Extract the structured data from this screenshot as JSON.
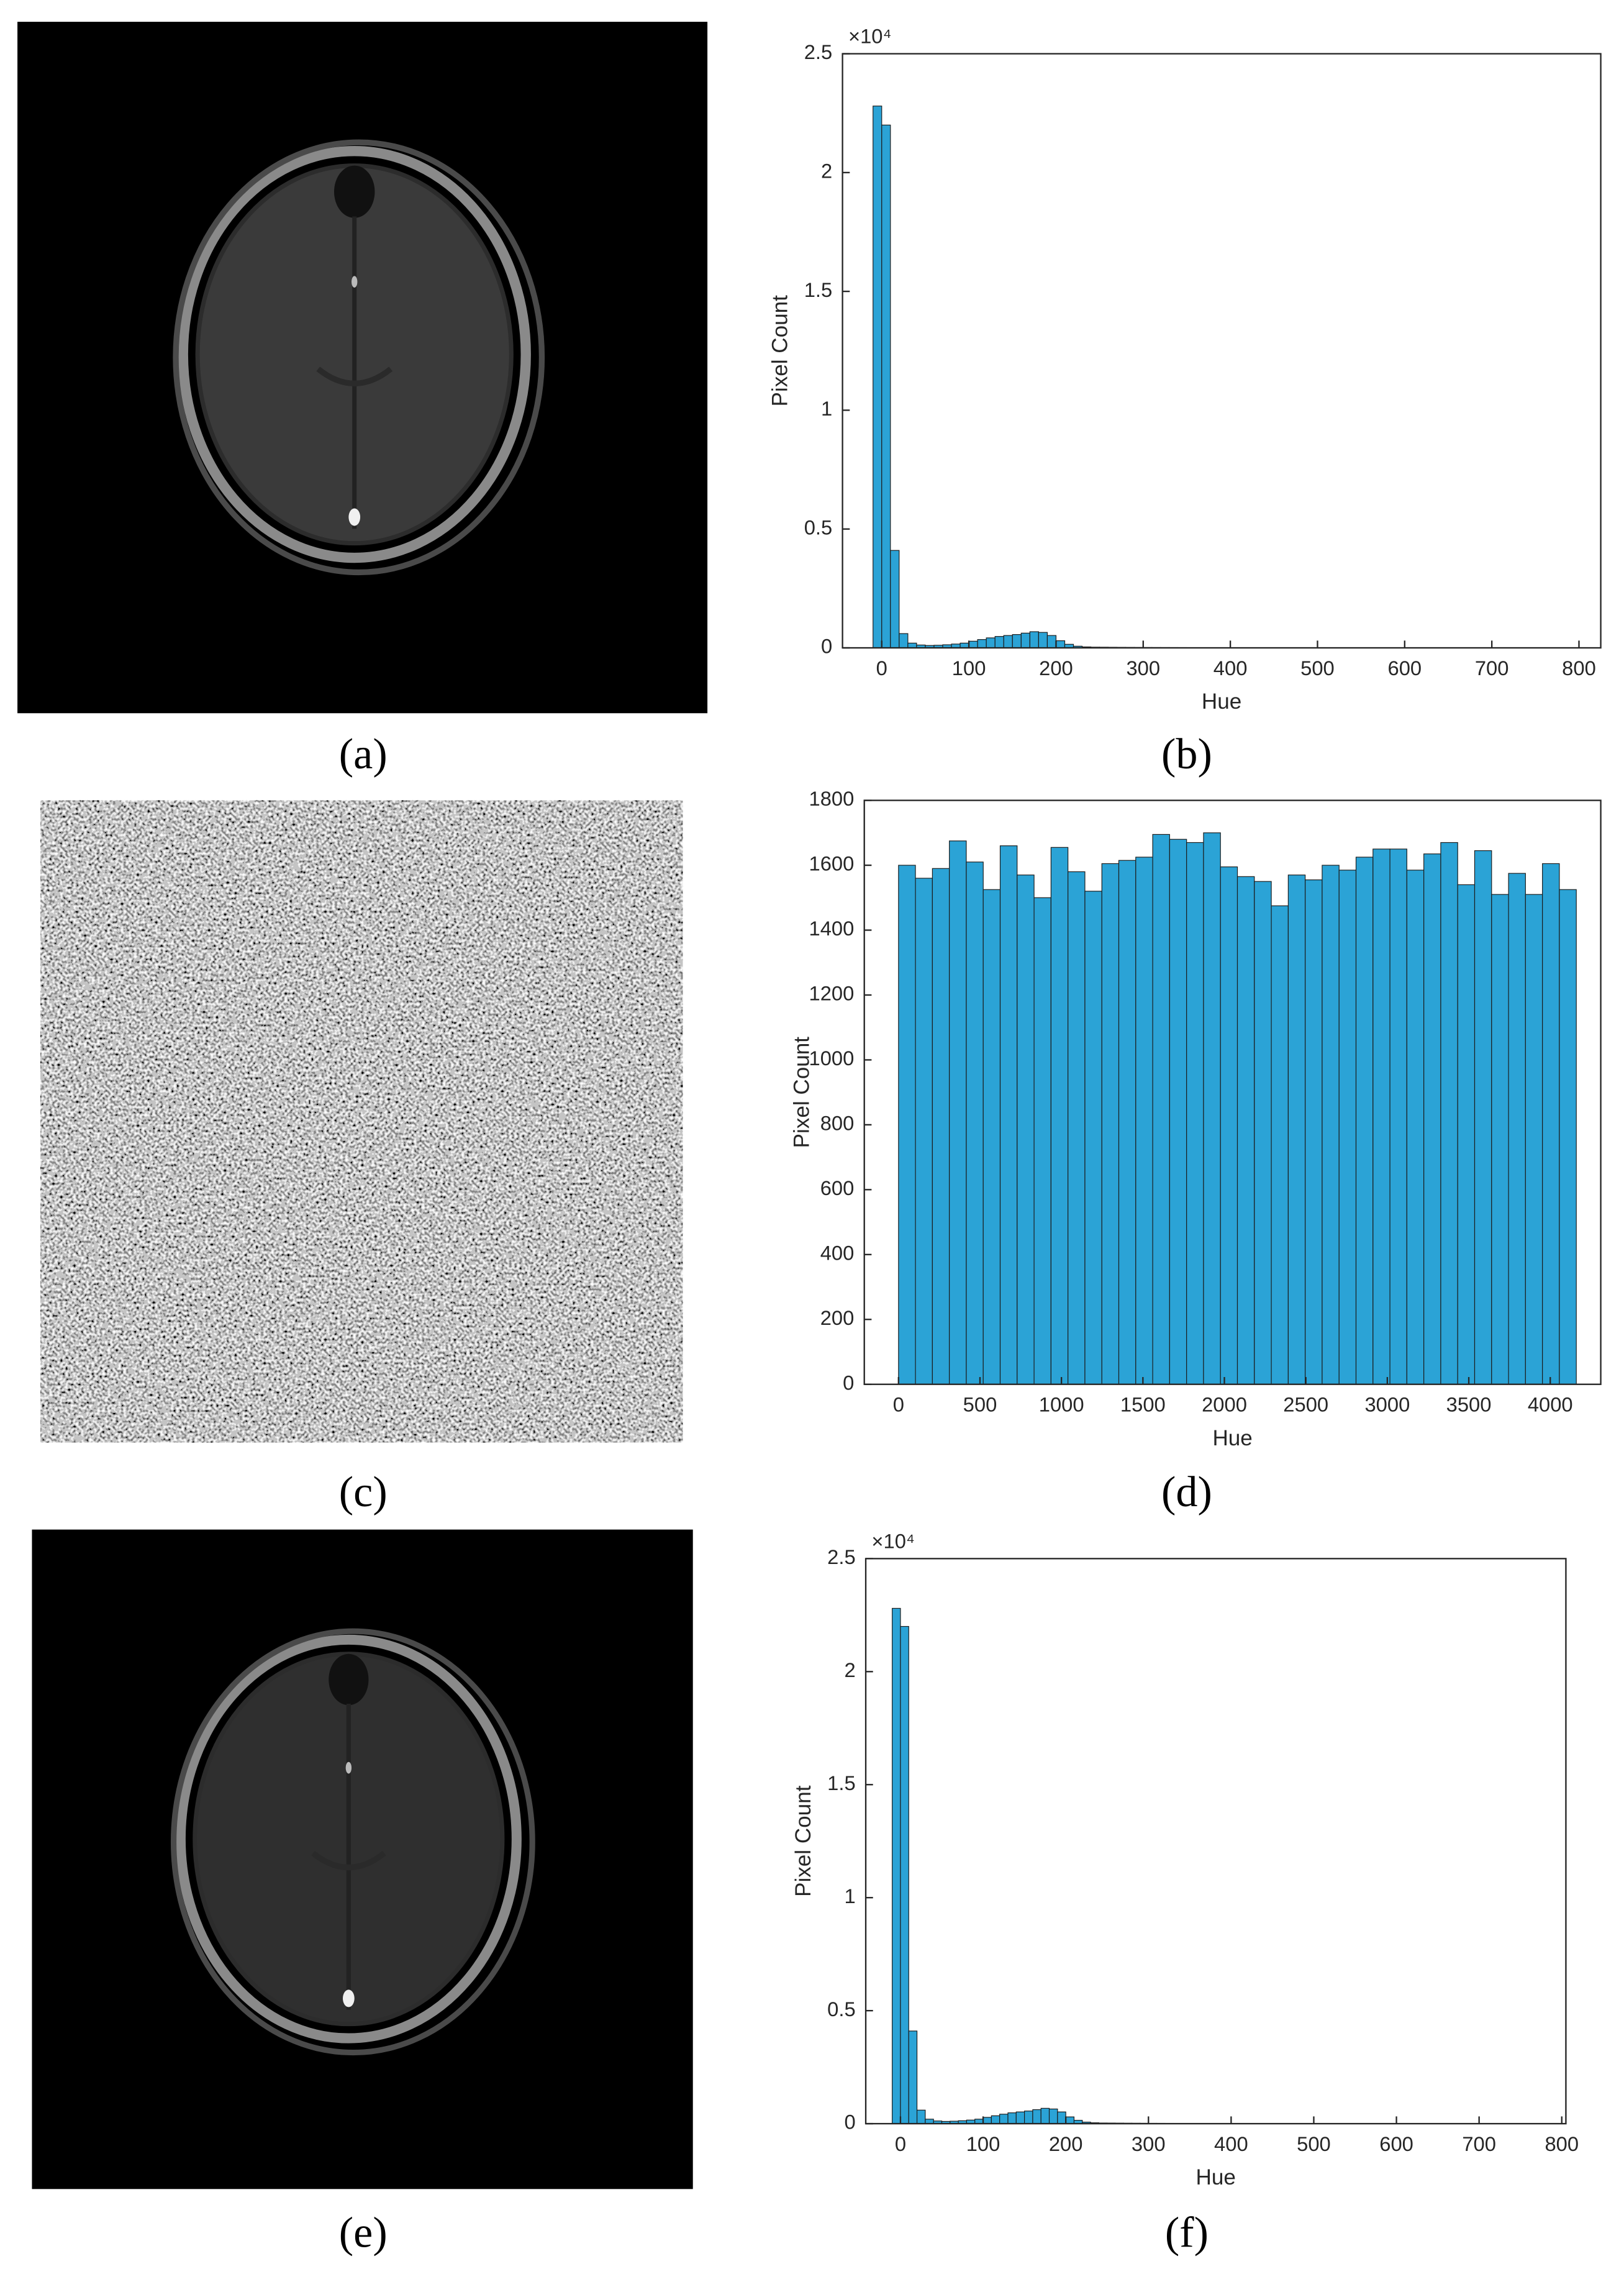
{
  "captions": [
    "(a)",
    "(b)",
    "(c)",
    "(d)",
    "(e)",
    "(f)"
  ],
  "chart_data": [
    {
      "type": "histogram",
      "xlabel": "Hue",
      "ylabel": "Pixel Count",
      "y_exponent_label": "×10⁴",
      "color": "#2ba3d6",
      "edge_color": "#1b1b1b",
      "bins": [
        -10,
        0,
        10,
        20,
        30,
        40,
        50,
        60,
        70,
        80,
        90,
        100,
        110,
        120,
        130,
        140,
        150,
        160,
        170,
        180,
        190,
        200,
        210,
        220,
        230,
        240,
        250,
        260,
        270,
        280,
        290,
        300,
        310,
        320,
        330,
        340,
        350,
        360,
        370,
        380,
        390,
        400,
        410,
        420,
        430,
        440,
        450,
        460,
        470,
        480,
        490,
        500,
        510,
        520,
        530,
        540,
        550,
        560,
        570,
        580,
        590,
        600,
        610,
        620,
        630,
        640,
        650,
        660,
        670,
        680,
        690,
        700,
        710,
        720,
        730,
        740,
        750,
        760,
        770,
        780,
        790,
        800
      ],
      "values": [
        22800,
        22000,
        4100,
        600,
        200,
        120,
        100,
        110,
        130,
        160,
        200,
        280,
        350,
        420,
        480,
        520,
        560,
        620,
        680,
        650,
        520,
        300,
        150,
        70,
        40,
        30,
        28,
        25,
        22,
        20,
        18,
        16,
        15,
        14,
        13,
        12,
        11,
        10,
        10,
        9,
        9,
        8,
        8,
        8,
        7,
        7,
        7,
        6,
        6,
        6,
        6,
        5,
        5,
        5,
        5,
        5,
        5,
        4,
        4,
        4,
        4,
        4,
        4,
        4,
        3,
        3,
        3,
        3,
        3,
        3,
        3,
        3,
        3,
        2,
        2,
        2,
        2,
        2,
        2,
        2,
        2
      ],
      "xlim": [
        -45,
        825
      ],
      "xticks": [
        0,
        100,
        200,
        300,
        400,
        500,
        600,
        700,
        800
      ],
      "ylim": [
        0,
        25000
      ],
      "yticks": [
        0,
        {
          "value": 5000,
          "label": "0.5"
        },
        {
          "value": 10000,
          "label": "1"
        },
        {
          "value": 15000,
          "label": "1.5"
        },
        {
          "value": 20000,
          "label": "2"
        },
        {
          "value": 25000,
          "label": "2.5"
        }
      ]
    },
    {
      "type": "histogram",
      "xlabel": "Hue",
      "ylabel": "Pixel Count",
      "color": "#2ba3d6",
      "edge_color": "#1b1b1b",
      "bins": [
        0,
        104,
        208,
        312,
        416,
        520,
        624,
        728,
        832,
        936,
        1040,
        1144,
        1248,
        1352,
        1456,
        1560,
        1664,
        1768,
        1872,
        1976,
        2080,
        2184,
        2288,
        2392,
        2496,
        2600,
        2704,
        2808,
        2912,
        3016,
        3120,
        3224,
        3328,
        3432,
        3536,
        3640,
        3744,
        3848,
        3952,
        4056,
        4160
      ],
      "values": [
        1600,
        1560,
        1590,
        1675,
        1610,
        1525,
        1660,
        1570,
        1500,
        1655,
        1580,
        1520,
        1605,
        1615,
        1625,
        1695,
        1680,
        1670,
        1700,
        1595,
        1565,
        1550,
        1475,
        1570,
        1555,
        1600,
        1585,
        1625,
        1650,
        1650,
        1585,
        1635,
        1670,
        1540,
        1645,
        1510,
        1575,
        1510,
        1605,
        1525
      ],
      "xlim": [
        -210,
        4310
      ],
      "xticks": [
        0,
        500,
        1000,
        1500,
        2000,
        2500,
        3000,
        3500,
        4000
      ],
      "ylim": [
        0,
        1800
      ],
      "yticks": [
        0,
        200,
        400,
        600,
        800,
        1000,
        1200,
        1400,
        1600,
        1800
      ]
    },
    {
      "type": "histogram",
      "xlabel": "Hue",
      "ylabel": "Pixel Count",
      "y_exponent_label": "×10⁴",
      "color": "#2ba3d6",
      "edge_color": "#1b1b1b",
      "bins": [
        -10,
        0,
        10,
        20,
        30,
        40,
        50,
        60,
        70,
        80,
        90,
        100,
        110,
        120,
        130,
        140,
        150,
        160,
        170,
        180,
        190,
        200,
        210,
        220,
        230,
        240,
        250,
        260,
        270,
        280,
        290,
        300,
        310,
        320,
        330,
        340,
        350,
        360,
        370,
        380,
        390,
        400,
        410,
        420,
        430,
        440,
        450,
        460,
        470,
        480,
        490,
        500,
        510,
        520,
        530,
        540,
        550,
        560,
        570,
        580,
        590,
        600,
        610,
        620,
        630,
        640,
        650,
        660,
        670,
        680,
        690,
        700,
        710,
        720,
        730,
        740,
        750,
        760,
        770,
        780,
        790,
        800
      ],
      "values": [
        22800,
        22000,
        4100,
        600,
        200,
        120,
        100,
        110,
        130,
        160,
        200,
        280,
        350,
        420,
        480,
        520,
        560,
        620,
        680,
        650,
        520,
        300,
        150,
        70,
        40,
        30,
        28,
        25,
        22,
        20,
        18,
        16,
        15,
        14,
        13,
        12,
        11,
        10,
        10,
        9,
        9,
        8,
        8,
        8,
        7,
        7,
        7,
        6,
        6,
        6,
        6,
        5,
        5,
        5,
        5,
        5,
        5,
        4,
        4,
        4,
        4,
        4,
        4,
        4,
        3,
        3,
        3,
        3,
        3,
        3,
        3,
        3,
        3,
        2,
        2,
        2,
        2,
        2,
        2,
        2,
        2
      ],
      "xlim": [
        -42,
        805
      ],
      "xticks": [
        0,
        100,
        200,
        300,
        400,
        500,
        600,
        700,
        800
      ],
      "ylim": [
        0,
        25000
      ],
      "yticks": [
        0,
        {
          "value": 5000,
          "label": "0.5"
        },
        {
          "value": 10000,
          "label": "1"
        },
        {
          "value": 15000,
          "label": "1.5"
        },
        {
          "value": 20000,
          "label": "2"
        },
        {
          "value": 25000,
          "label": "2.5"
        }
      ]
    }
  ]
}
